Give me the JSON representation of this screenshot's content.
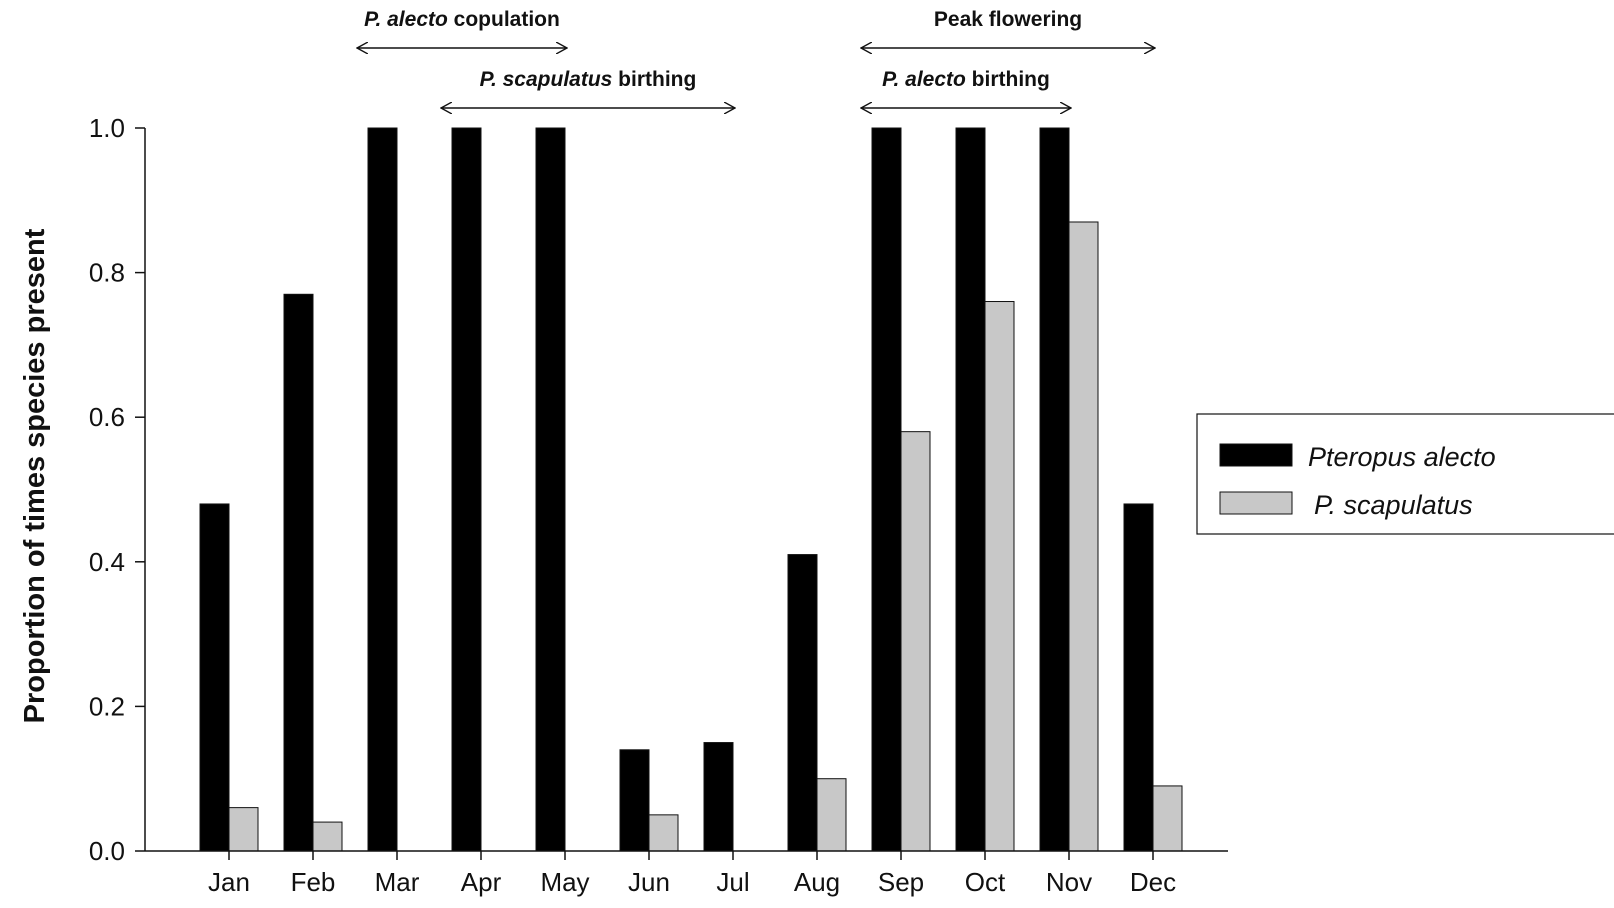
{
  "chart_data": {
    "type": "bar",
    "title": "",
    "xlabel": "",
    "ylabel": "Proportion of times species present",
    "ylim": [
      0,
      1.0
    ],
    "yticks": [
      "0.0",
      "0.2",
      "0.4",
      "0.6",
      "0.8",
      "1.0"
    ],
    "categories": [
      "Jan",
      "Feb",
      "Mar",
      "Apr",
      "May",
      "Jun",
      "Jul",
      "Aug",
      "Sep",
      "Oct",
      "Nov",
      "Dec"
    ],
    "series": [
      {
        "name": "Pteropus alecto",
        "color": "#000000",
        "values": [
          0.48,
          0.77,
          1.0,
          1.0,
          1.0,
          0.14,
          0.15,
          0.41,
          1.0,
          1.0,
          1.0,
          0.48
        ]
      },
      {
        "name": "P. scapulatus",
        "color": "#c8c8c8",
        "values": [
          0.06,
          0.04,
          0,
          0,
          0,
          0.05,
          0,
          0.1,
          0.58,
          0.76,
          0.87,
          0.09
        ]
      }
    ],
    "grid": false,
    "legend_position": "right",
    "annotations": [
      {
        "italic": "P. alecto",
        "text": " copulation",
        "from": "Mar",
        "to": "May",
        "row": 1
      },
      {
        "italic": "",
        "text": "Peak flowering",
        "from": "Sep",
        "to": "Dec",
        "row": 1
      },
      {
        "italic": "P. scapulatus",
        "text": " birthing",
        "from": "Apr",
        "to": "Jul",
        "row": 2
      },
      {
        "italic": "P. alecto",
        "text": " birthing",
        "from": "Sep",
        "to": "Nov",
        "row": 2
      }
    ]
  }
}
